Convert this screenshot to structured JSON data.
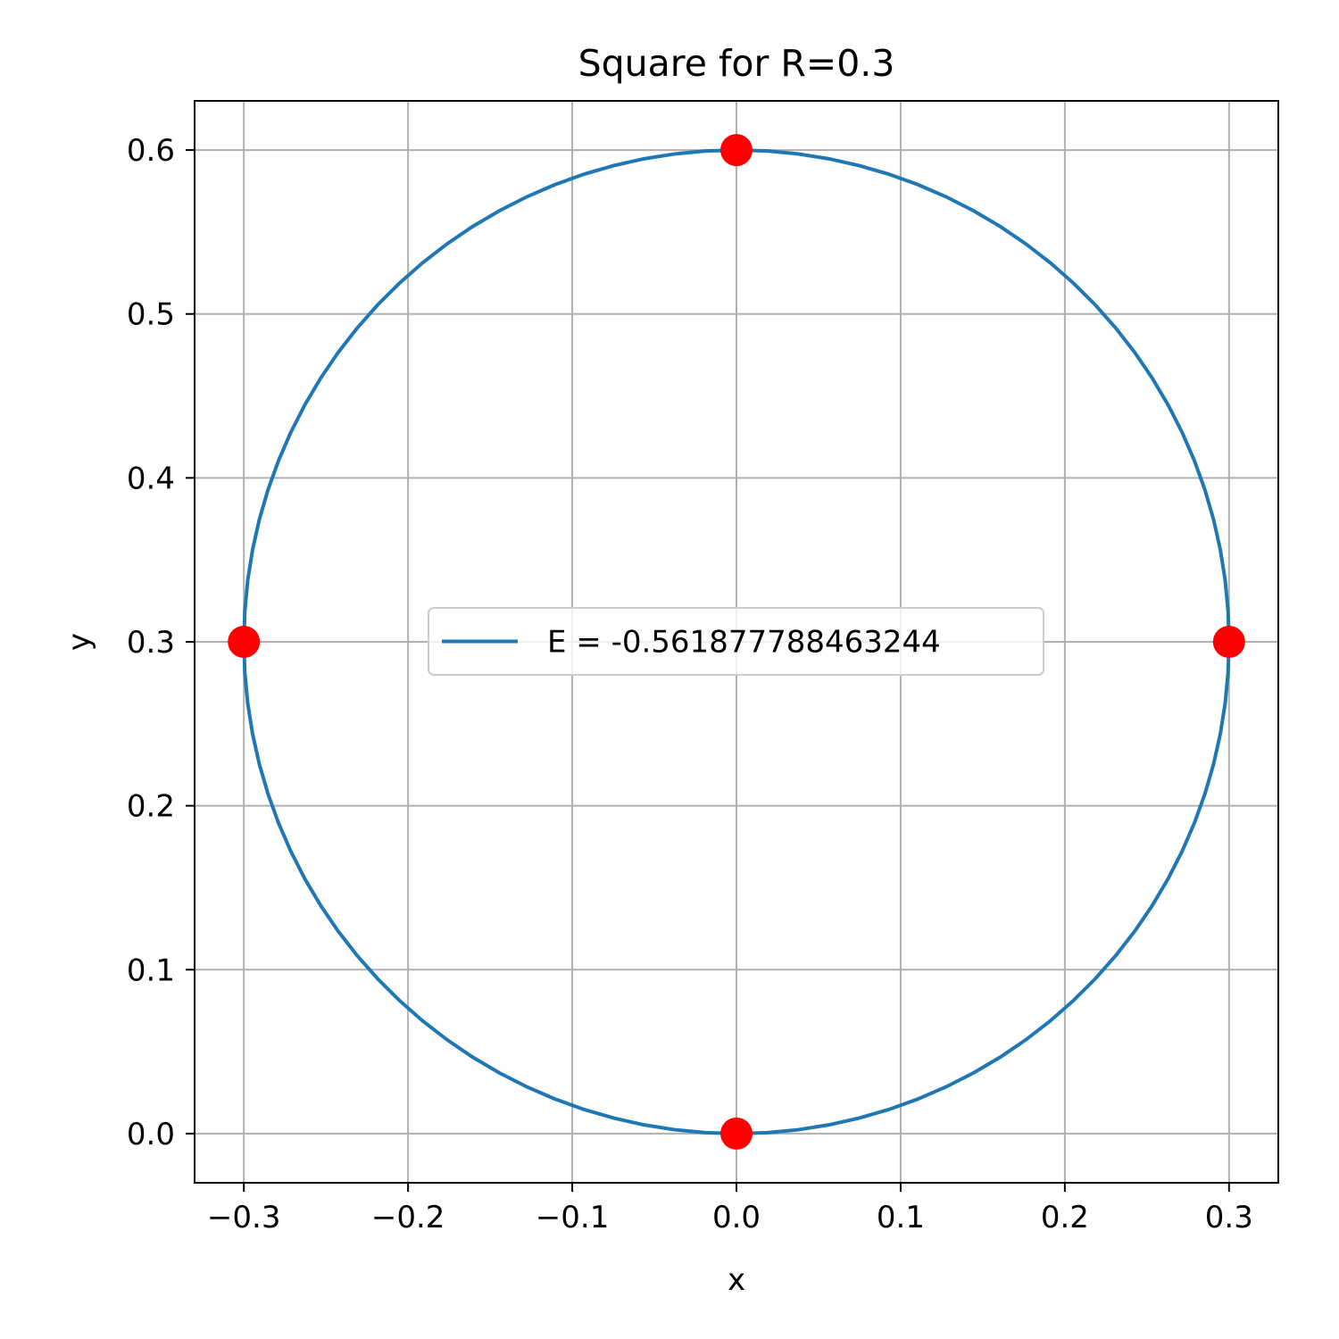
{
  "chart_data": {
    "type": "line",
    "title": "Square for R=0.3",
    "xlabel": "x",
    "ylabel": "y",
    "xlim": [
      -0.33,
      0.33
    ],
    "ylim": [
      -0.03,
      0.63
    ],
    "xticks": [
      -0.3,
      -0.2,
      -0.1,
      0.0,
      0.1,
      0.2,
      0.3
    ],
    "yticks": [
      0.0,
      0.1,
      0.2,
      0.3,
      0.4,
      0.5,
      0.6
    ],
    "xtick_labels": [
      "−0.3",
      "−0.2",
      "−0.1",
      "0.0",
      "0.1",
      "0.2",
      "0.3"
    ],
    "ytick_labels": [
      "0.0",
      "0.1",
      "0.2",
      "0.3",
      "0.4",
      "0.5",
      "0.6"
    ],
    "grid": true,
    "legend": {
      "location": "center",
      "entries": [
        "E = -0.561877788463244"
      ]
    },
    "series": [
      {
        "name": "E = -0.561877788463244",
        "kind": "line",
        "color": "#1f77b4",
        "shape": "circle",
        "center": [
          0.0,
          0.3
        ],
        "radius": 0.3
      },
      {
        "kind": "scatter",
        "color": "#ff0000",
        "x": [
          0.0,
          0.3,
          0.0,
          -0.3
        ],
        "y": [
          0.6,
          0.3,
          0.0,
          0.3
        ]
      }
    ]
  }
}
